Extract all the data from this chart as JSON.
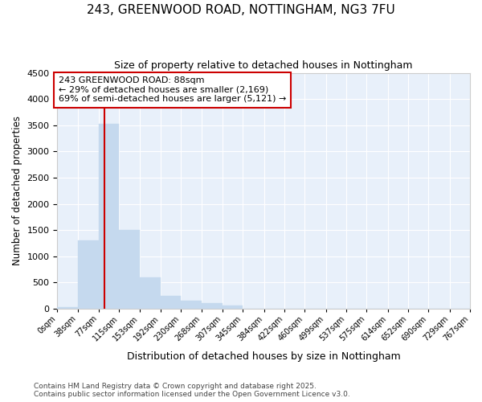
{
  "title_line1": "243, GREENWOOD ROAD, NOTTINGHAM, NG3 7FU",
  "title_line2": "Size of property relative to detached houses in Nottingham",
  "xlabel": "Distribution of detached houses by size in Nottingham",
  "ylabel": "Number of detached properties",
  "bar_color": "#c5d9ee",
  "bar_edge_color": "#c5d9ee",
  "plot_bg_color": "#e8f0fa",
  "fig_bg_color": "#ffffff",
  "grid_color": "#ffffff",
  "vline_color": "#cc0000",
  "property_size": 88,
  "annotation_text": "243 GREENWOOD ROAD: 88sqm\n← 29% of detached houses are smaller (2,169)\n69% of semi-detached houses are larger (5,121) →",
  "bin_edges": [
    0,
    38,
    77,
    115,
    153,
    192,
    230,
    268,
    307,
    345,
    384,
    422,
    460,
    499,
    537,
    575,
    614,
    652,
    690,
    729,
    767
  ],
  "bar_heights": [
    30,
    1300,
    3530,
    1500,
    600,
    250,
    160,
    100,
    60,
    0,
    0,
    0,
    0,
    0,
    0,
    0,
    0,
    0,
    0,
    0
  ],
  "ylim": [
    0,
    4500
  ],
  "yticks": [
    0,
    500,
    1000,
    1500,
    2000,
    2500,
    3000,
    3500,
    4000,
    4500
  ],
  "footer_text": "Contains HM Land Registry data © Crown copyright and database right 2025.\nContains public sector information licensed under the Open Government Licence v3.0."
}
